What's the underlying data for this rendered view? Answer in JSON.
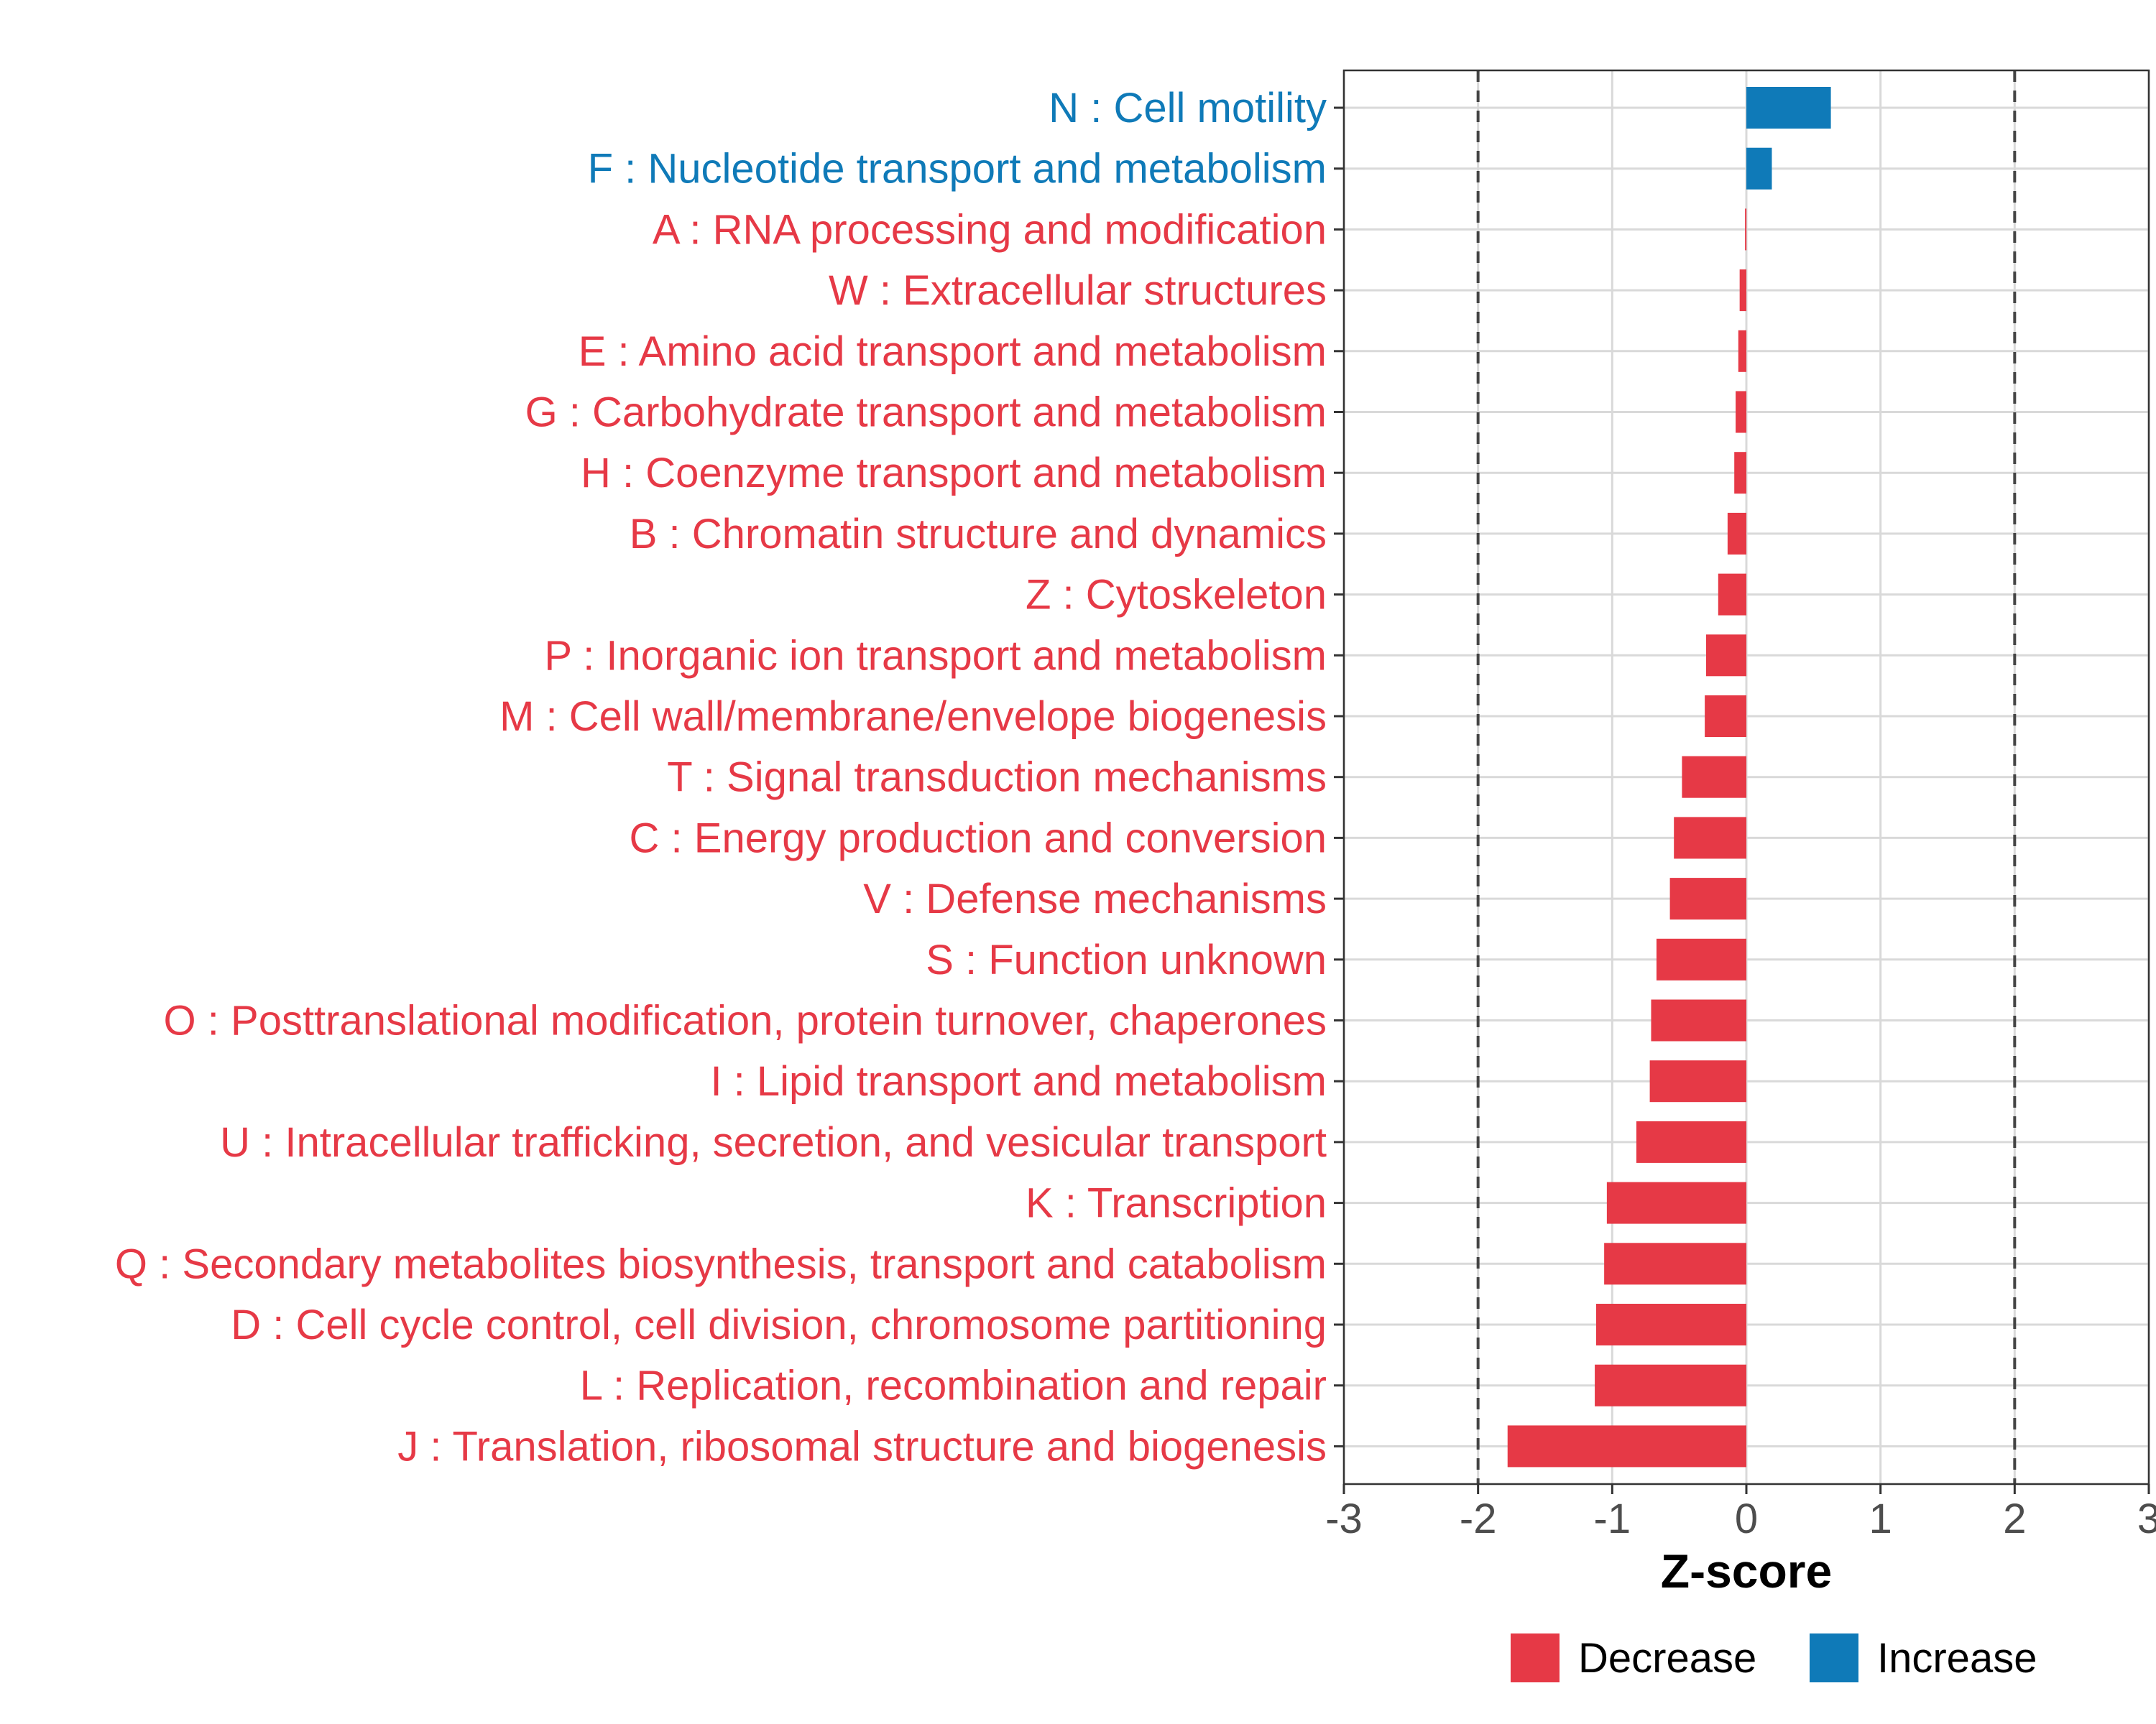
{
  "chart_data": {
    "type": "bar",
    "orientation": "horizontal",
    "title": "",
    "xlabel": "Z-score",
    "ylabel": "",
    "xlim": [
      -3,
      3
    ],
    "xticks": [
      -3,
      -2,
      -1,
      0,
      1,
      2,
      3
    ],
    "tick_labels": [
      "-3",
      "-2",
      "-1",
      "0",
      "1",
      "2",
      "3"
    ],
    "reference_lines": [
      -2,
      2
    ],
    "grid": true,
    "legend_position": "bottom",
    "colors": {
      "Decrease": "#e63946",
      "Increase": "#0f7ab8"
    },
    "legend": [
      {
        "label": "Decrease",
        "color": "#e63946"
      },
      {
        "label": "Increase",
        "color": "#0f7ab8"
      }
    ],
    "categories": [
      "N : Cell motility",
      "F : Nucleotide transport and metabolism",
      "A : RNA processing and modification",
      "W : Extracellular structures",
      "E : Amino acid transport and metabolism",
      "G : Carbohydrate transport and metabolism",
      "H : Coenzyme transport and metabolism",
      "B : Chromatin structure and dynamics",
      "Z : Cytoskeleton",
      "P : Inorganic ion transport and metabolism",
      "M : Cell wall/membrane/envelope biogenesis",
      "T : Signal transduction mechanisms",
      "C : Energy production and conversion",
      "V : Defense mechanisms",
      "S : Function unknown",
      "O : Posttranslational modification, protein turnover, chaperones",
      "I : Lipid transport and metabolism",
      "U : Intracellular trafficking, secretion, and vesicular transport",
      "K : Transcription",
      "Q : Secondary metabolites biosynthesis, transport and catabolism",
      "D : Cell cycle control, cell division, chromosome partitioning",
      "L : Replication, recombination and repair",
      "J : Translation, ribosomal structure and biogenesis"
    ],
    "values": [
      0.63,
      0.19,
      -0.01,
      -0.05,
      -0.06,
      -0.08,
      -0.09,
      -0.14,
      -0.21,
      -0.3,
      -0.31,
      -0.48,
      -0.54,
      -0.57,
      -0.67,
      -0.71,
      -0.72,
      -0.82,
      -1.04,
      -1.06,
      -1.12,
      -1.13,
      -1.78
    ],
    "groups": [
      "Increase",
      "Increase",
      "Decrease",
      "Decrease",
      "Decrease",
      "Decrease",
      "Decrease",
      "Decrease",
      "Decrease",
      "Decrease",
      "Decrease",
      "Decrease",
      "Decrease",
      "Decrease",
      "Decrease",
      "Decrease",
      "Decrease",
      "Decrease",
      "Decrease",
      "Decrease",
      "Decrease",
      "Decrease",
      "Decrease"
    ]
  }
}
